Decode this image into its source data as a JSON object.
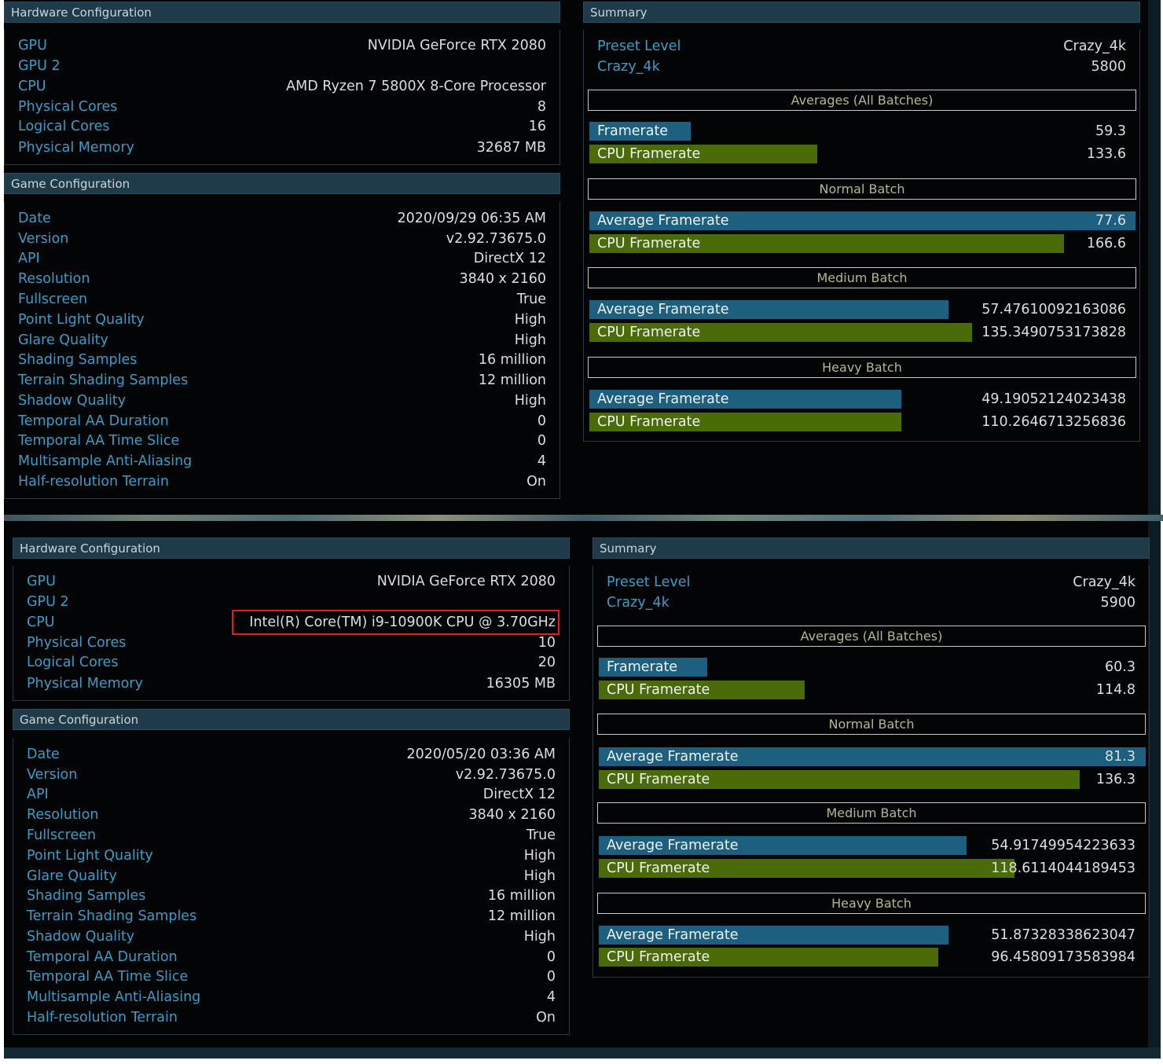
{
  "colors": {
    "label": "#3a9dc8",
    "value": "#d9dfe2",
    "avg_bar": "#1d5f7e",
    "cpu_bar": "#4a6b08",
    "highlight": "#e41c1c"
  },
  "shots": [
    {
      "hardware": {
        "title": "Hardware Configuration",
        "rows": [
          {
            "label": "GPU",
            "value": "NVIDIA GeForce RTX 2080"
          },
          {
            "label": "GPU 2",
            "value": ""
          },
          {
            "label": "CPU",
            "value": "AMD Ryzen 7 5800X 8-Core Processor"
          },
          {
            "label": "Physical Cores",
            "value": "8"
          },
          {
            "label": "Logical Cores",
            "value": "16"
          },
          {
            "label": "Physical Memory",
            "value": "32687 MB"
          }
        ]
      },
      "game": {
        "title": "Game Configuration",
        "rows": [
          {
            "label": "Date",
            "value": "2020/09/29 06:35 AM"
          },
          {
            "label": "Version",
            "value": "v2.92.73675.0"
          },
          {
            "label": "API",
            "value": "DirectX 12"
          },
          {
            "label": "Resolution",
            "value": "3840 x 2160"
          },
          {
            "label": "Fullscreen",
            "value": "True"
          },
          {
            "label": "Point Light Quality",
            "value": "High"
          },
          {
            "label": "Glare Quality",
            "value": "High"
          },
          {
            "label": "Shading Samples",
            "value": "16 million"
          },
          {
            "label": "Terrain Shading Samples",
            "value": "12 million"
          },
          {
            "label": "Shadow Quality",
            "value": "High"
          },
          {
            "label": "Temporal AA Duration",
            "value": "0"
          },
          {
            "label": "Temporal AA Time Slice",
            "value": "0"
          },
          {
            "label": "Multisample Anti-Aliasing",
            "value": "4"
          },
          {
            "label": "Half-resolution Terrain",
            "value": "On"
          }
        ]
      },
      "summary": {
        "title": "Summary",
        "preset_label": "Preset Level",
        "preset_value": "Crazy_4k",
        "score_label": "Crazy_4k",
        "score_value": "5800",
        "averages": {
          "title": "Averages (All Batches)",
          "avg_label": "Framerate",
          "avg_value": "59.3",
          "avg_fill": 0.185,
          "cpu_label": "CPU Framerate",
          "cpu_value": "133.6",
          "cpu_fill": 0.417
        },
        "normal": {
          "title": "Normal Batch",
          "avg_label": "Average Framerate",
          "avg_value": "77.6",
          "avg_fill": 0.998,
          "cpu_label": "CPU Framerate",
          "cpu_value": "166.6",
          "cpu_fill": 0.868
        },
        "medium": {
          "title": "Medium Batch",
          "avg_label": "Average Framerate",
          "avg_value": "57.47610092163086",
          "avg_fill": 0.656,
          "cpu_label": "CPU Framerate",
          "cpu_value": "135.3490753173828",
          "cpu_fill": 0.7
        },
        "heavy": {
          "title": "Heavy Batch",
          "avg_label": "Average Framerate",
          "avg_value": "49.19052124023438",
          "avg_fill": 0.57,
          "cpu_label": "CPU Framerate",
          "cpu_value": "110.2646713256836",
          "cpu_fill": 0.57
        }
      }
    },
    {
      "hardware": {
        "title": "Hardware Configuration",
        "rows": [
          {
            "label": "GPU",
            "value": "NVIDIA GeForce RTX 2080"
          },
          {
            "label": "GPU 2",
            "value": ""
          },
          {
            "label": "CPU",
            "value": "Intel(R) Core(TM) i9-10900K CPU @ 3.70GHz"
          },
          {
            "label": "Physical Cores",
            "value": "10"
          },
          {
            "label": "Logical Cores",
            "value": "20"
          },
          {
            "label": "Physical Memory",
            "value": "16305 MB"
          }
        ]
      },
      "game": {
        "title": "Game Configuration",
        "rows": [
          {
            "label": "Date",
            "value": "2020/05/20 03:36 AM"
          },
          {
            "label": "Version",
            "value": "v2.92.73675.0"
          },
          {
            "label": "API",
            "value": "DirectX 12"
          },
          {
            "label": "Resolution",
            "value": "3840 x 2160"
          },
          {
            "label": "Fullscreen",
            "value": "True"
          },
          {
            "label": "Point Light Quality",
            "value": "High"
          },
          {
            "label": "Glare Quality",
            "value": "High"
          },
          {
            "label": "Shading Samples",
            "value": "16 million"
          },
          {
            "label": "Terrain Shading Samples",
            "value": "12 million"
          },
          {
            "label": "Shadow Quality",
            "value": "High"
          },
          {
            "label": "Temporal AA Duration",
            "value": "0"
          },
          {
            "label": "Temporal AA Time Slice",
            "value": "0"
          },
          {
            "label": "Multisample Anti-Aliasing",
            "value": "4"
          },
          {
            "label": "Half-resolution Terrain",
            "value": "On"
          }
        ]
      },
      "summary": {
        "title": "Summary",
        "preset_label": "Preset Level",
        "preset_value": "Crazy_4k",
        "score_label": "Crazy_4k",
        "score_value": "5900",
        "averages": {
          "title": "Averages (All Batches)",
          "avg_label": "Framerate",
          "avg_value": "60.3",
          "avg_fill": 0.198,
          "cpu_label": "CPU Framerate",
          "cpu_value": "114.8",
          "cpu_fill": 0.376
        },
        "normal": {
          "title": "Normal Batch",
          "avg_label": "Average Framerate",
          "avg_value": "81.3",
          "avg_fill": 1.0,
          "cpu_label": "CPU Framerate",
          "cpu_value": "136.3",
          "cpu_fill": 0.879
        },
        "medium": {
          "title": "Medium Batch",
          "avg_label": "Average Framerate",
          "avg_value": "54.91749954223633",
          "avg_fill": 0.673,
          "cpu_label": "CPU Framerate",
          "cpu_value": "118.6114044189453",
          "cpu_fill": 0.76
        },
        "heavy": {
          "title": "Heavy Batch",
          "avg_label": "Average Framerate",
          "avg_value": "51.87328338623047",
          "avg_fill": 0.64,
          "cpu_label": "CPU Framerate",
          "cpu_value": "96.45809173583984",
          "cpu_fill": 0.62
        }
      }
    }
  ]
}
